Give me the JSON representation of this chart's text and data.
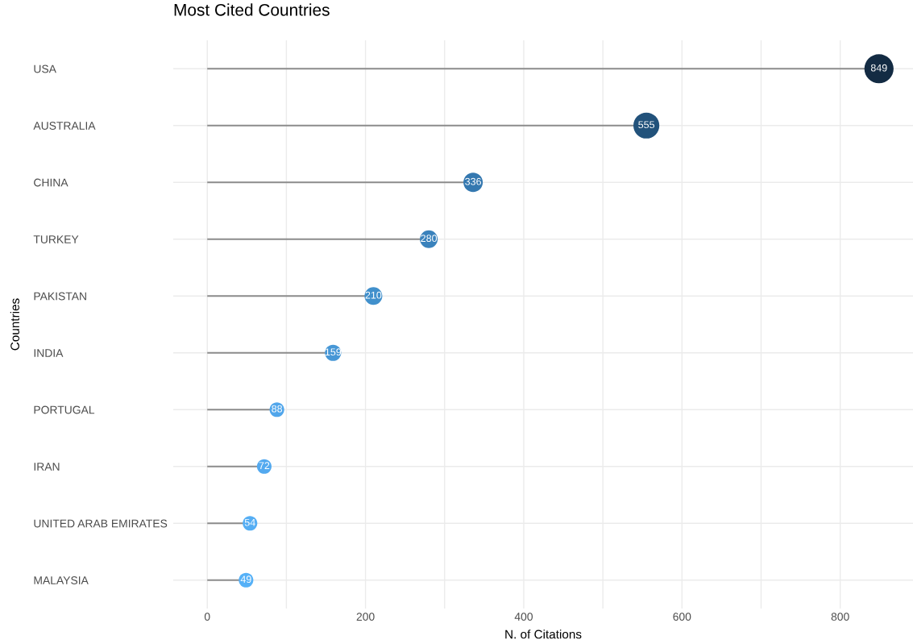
{
  "chart_data": {
    "type": "lollipop",
    "title": "Most Cited Countries",
    "xlabel": "N. of Citations",
    "ylabel": "Countries",
    "orientation": "horizontal",
    "categories": [
      "USA",
      "AUSTRALIA",
      "CHINA",
      "TURKEY",
      "PAKISTAN",
      "INDIA",
      "PORTUGAL",
      "IRAN",
      "UNITED ARAB EMIRATES",
      "MALAYSIA"
    ],
    "values": [
      849,
      555,
      336,
      280,
      210,
      159,
      88,
      72,
      54,
      49
    ],
    "sizes": [
      1,
      0.79,
      0.44,
      0.37,
      0.37,
      0.31,
      0.25,
      0.25,
      0.25,
      0.25
    ],
    "colors": [
      "#132b43",
      "#22527b",
      "#3478b0",
      "#3a82bc",
      "#4190cc",
      "#4797d6",
      "#51a6eb",
      "#53a9ef",
      "#55aef4",
      "#56b1f7"
    ],
    "xlim": [
      -43,
      892
    ],
    "xticks": [
      0,
      {
        "value": 100,
        "label": null
      },
      200,
      {
        "value": 300,
        "label": null
      },
      400,
      {
        "value": 500,
        "label": null
      },
      600,
      {
        "value": 700,
        "label": null
      },
      800
    ],
    "grid": true,
    "marker": "circle",
    "data_labels": true
  }
}
